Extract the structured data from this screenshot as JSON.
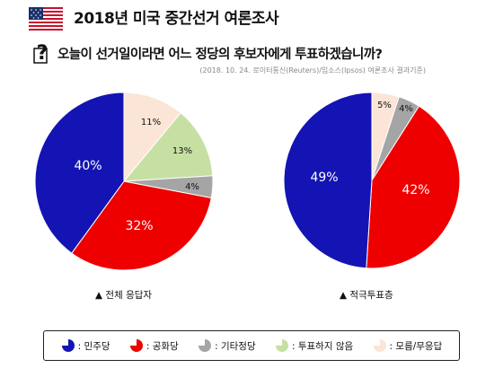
{
  "header": {
    "title": "2018년 미국 중간선거 여론조사",
    "question": "오늘이 선거일이라면 어느 정당의 후보자에게 투표하겠습니까?",
    "source": "(2018. 10. 24. 로이터통신(Reuters)/입소스(Ipsos) 여론조사 결과기준)"
  },
  "icons": {
    "flag": "us-flag-icon",
    "question": "question-mark-icon"
  },
  "colors": {
    "democrat": "#1414b4",
    "republican": "#ee0000",
    "other": "#a5a5a5",
    "no_vote": "#c6e0a4",
    "unknown": "#fbe5d6"
  },
  "chart_data": [
    {
      "type": "pie",
      "title": "▲ 전체 응답자",
      "categories": [
        "민주당",
        "공화당",
        "기타정당",
        "투표하지 않음",
        "모름/무응답"
      ],
      "values": [
        40,
        32,
        4,
        13,
        11
      ],
      "data_labels": [
        "40%",
        "32%",
        "4%",
        "13%",
        "11%"
      ]
    },
    {
      "type": "pie",
      "title": "▲ 적극투표층",
      "categories": [
        "민주당",
        "공화당",
        "기타정당",
        "모름/무응답"
      ],
      "values": [
        49,
        42,
        4,
        5
      ],
      "data_labels": [
        "49%",
        "42%",
        "4%",
        "5%"
      ]
    }
  ],
  "legend": [
    {
      "label": ": 민주당",
      "key": "democrat"
    },
    {
      "label": ": 공화당",
      "key": "republican"
    },
    {
      "label": ": 기타정당",
      "key": "other"
    },
    {
      "label": ": 투표하지 않음",
      "key": "no_vote"
    },
    {
      "label": ": 모름/무응답",
      "key": "unknown"
    }
  ]
}
